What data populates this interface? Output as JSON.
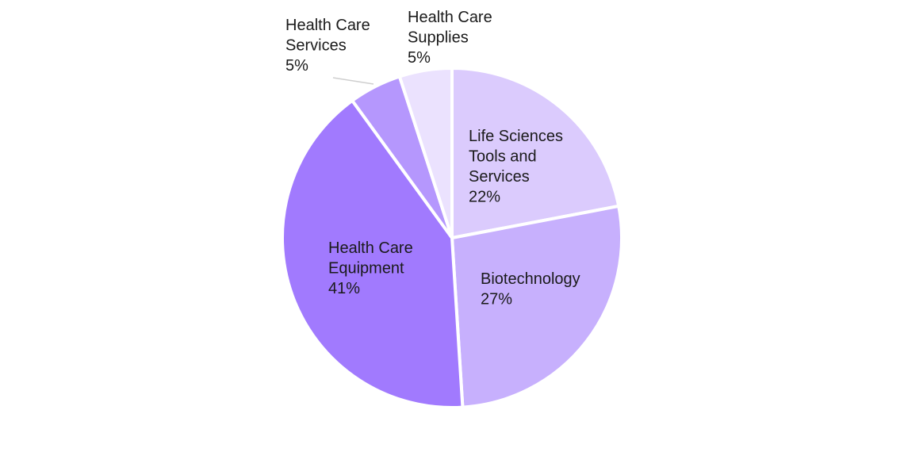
{
  "chart_data": {
    "type": "pie",
    "title": "",
    "slices": [
      {
        "label": "Life Sciences Tools and Services",
        "label_lines": [
          "Life Sciences",
          "Tools and",
          "Services"
        ],
        "value_label": "22%",
        "value": 22,
        "color": "#dbcbfd"
      },
      {
        "label": "Biotechnology",
        "label_lines": [
          "Biotechnology"
        ],
        "value_label": "27%",
        "value": 27,
        "color": "#c7b0fd"
      },
      {
        "label": "Health Care Equipment",
        "label_lines": [
          "Health Care",
          "Equipment"
        ],
        "value_label": "41%",
        "value": 41,
        "color": "#a17afe"
      },
      {
        "label": "Health Care Services",
        "label_lines": [
          "Health Care",
          "Services"
        ],
        "value_label": "5%",
        "value": 5,
        "color": "#b597fd"
      },
      {
        "label": "Health Care Supplies",
        "label_lines": [
          "Health Care",
          "Supplies"
        ],
        "value_label": "5%",
        "value": 5,
        "color": "#ebe2fe"
      }
    ],
    "direction": "clockwise",
    "start": "12 o'clock",
    "label_color": "#1a1a1a",
    "leader_line_color": "#cfcfcf",
    "separator_color": "#ffffff"
  }
}
